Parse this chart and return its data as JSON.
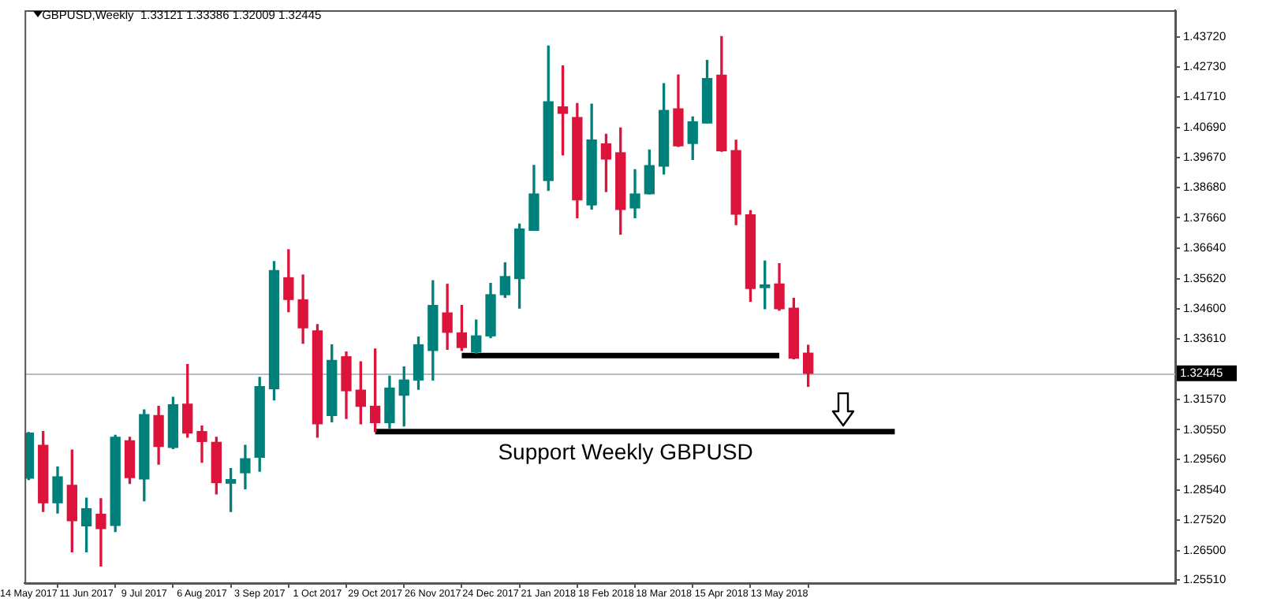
{
  "chart_data": {
    "type": "candlestick",
    "title": "GBPUSD,Weekly  1.33121 1.33386 1.32009 1.32445",
    "x": [
      "2017-05-14",
      "2017-05-21",
      "2017-05-28",
      "2017-06-04",
      "2017-06-11",
      "2017-06-18",
      "2017-06-25",
      "2017-07-02",
      "2017-07-09",
      "2017-07-16",
      "2017-07-23",
      "2017-07-30",
      "2017-08-06",
      "2017-08-13",
      "2017-08-20",
      "2017-08-27",
      "2017-09-03",
      "2017-09-10",
      "2017-09-17",
      "2017-09-24",
      "2017-10-01",
      "2017-10-08",
      "2017-10-15",
      "2017-10-22",
      "2017-10-29",
      "2017-11-05",
      "2017-11-12",
      "2017-11-19",
      "2017-11-26",
      "2017-12-03",
      "2017-12-10",
      "2017-12-17",
      "2017-12-24",
      "2017-12-31",
      "2018-01-07",
      "2018-01-14",
      "2018-01-21",
      "2018-01-28",
      "2018-02-04",
      "2018-02-11",
      "2018-02-18",
      "2018-02-25",
      "2018-03-04",
      "2018-03-11",
      "2018-03-18",
      "2018-03-25",
      "2018-04-01",
      "2018-04-08",
      "2018-04-15",
      "2018-04-22",
      "2018-04-29",
      "2018-05-06",
      "2018-05-13",
      "2018-05-20",
      "2018-05-27"
    ],
    "ohlc": [
      [
        1.2893,
        1.3046,
        1.2888,
        1.3044
      ],
      [
        1.3003,
        1.3049,
        1.2781,
        1.281
      ],
      [
        1.281,
        1.293,
        1.2776,
        1.2897
      ],
      [
        1.2869,
        1.2987,
        1.2646,
        1.275
      ],
      [
        1.2733,
        1.2826,
        1.2646,
        1.279
      ],
      [
        1.2772,
        1.2824,
        1.2598,
        1.2724
      ],
      [
        1.2734,
        1.3037,
        1.2714,
        1.303
      ],
      [
        1.3018,
        1.303,
        1.2875,
        1.2895
      ],
      [
        1.289,
        1.3122,
        1.2817,
        1.3106
      ],
      [
        1.3103,
        1.3134,
        1.294,
        1.2999
      ],
      [
        1.2996,
        1.3164,
        1.2992,
        1.3139
      ],
      [
        1.3141,
        1.3274,
        1.303,
        1.3044
      ],
      [
        1.3049,
        1.3068,
        1.2946,
        1.3016
      ],
      [
        1.3013,
        1.303,
        1.284,
        1.2878
      ],
      [
        1.2876,
        1.2925,
        1.2781,
        1.2888
      ],
      [
        1.2911,
        1.3003,
        1.2857,
        1.2958
      ],
      [
        1.2963,
        1.3231,
        1.2916,
        1.32
      ],
      [
        1.3193,
        1.3619,
        1.3155,
        1.3589
      ],
      [
        1.3565,
        1.3659,
        1.3451,
        1.3492
      ],
      [
        1.3491,
        1.3574,
        1.3345,
        1.3397
      ],
      [
        1.3387,
        1.3408,
        1.303,
        1.3075
      ],
      [
        1.3103,
        1.334,
        1.3082,
        1.3288
      ],
      [
        1.33,
        1.3316,
        1.3093,
        1.3186
      ],
      [
        1.3188,
        1.3283,
        1.3075,
        1.3134
      ],
      [
        1.3134,
        1.3326,
        1.3049,
        1.3079
      ],
      [
        1.3079,
        1.3235,
        1.3061,
        1.3195
      ],
      [
        1.3171,
        1.3266,
        1.3068,
        1.3222
      ],
      [
        1.3222,
        1.3366,
        1.3191,
        1.334
      ],
      [
        1.3321,
        1.3555,
        1.3222,
        1.3472
      ],
      [
        1.3447,
        1.3543,
        1.3325,
        1.3382
      ],
      [
        1.338,
        1.3472,
        1.3321,
        1.3331
      ],
      [
        1.3316,
        1.3423,
        1.3312,
        1.337
      ],
      [
        1.337,
        1.3546,
        1.3364,
        1.3508
      ],
      [
        1.3508,
        1.3615,
        1.3499,
        1.3569
      ],
      [
        1.3562,
        1.3745,
        1.3463,
        1.3728
      ],
      [
        1.3724,
        1.3942,
        1.3724,
        1.3846
      ],
      [
        1.3891,
        1.4342,
        1.3858,
        1.4155
      ],
      [
        1.4138,
        1.4275,
        1.3977,
        1.4116
      ],
      [
        1.4102,
        1.4149,
        1.3766,
        1.3826
      ],
      [
        1.3809,
        1.4147,
        1.3795,
        1.4027
      ],
      [
        1.4014,
        1.4046,
        1.3854,
        1.3963
      ],
      [
        1.3984,
        1.4067,
        1.3711,
        1.3794
      ],
      [
        1.3799,
        1.3927,
        1.3766,
        1.3846
      ],
      [
        1.3847,
        1.3993,
        1.3846,
        1.3941
      ],
      [
        1.3939,
        1.4216,
        1.3913,
        1.4126
      ],
      [
        1.4131,
        1.4245,
        1.4005,
        1.4007
      ],
      [
        1.4015,
        1.4104,
        1.3962,
        1.4088
      ],
      [
        1.4084,
        1.4294,
        1.4084,
        1.4233
      ],
      [
        1.4244,
        1.4374,
        1.3989,
        1.3991
      ],
      [
        1.3991,
        1.4026,
        1.3743,
        1.3778
      ],
      [
        1.3776,
        1.379,
        1.3486,
        1.3529
      ],
      [
        1.3532,
        1.3621,
        1.3461,
        1.3541
      ],
      [
        1.3544,
        1.3612,
        1.3456,
        1.3461
      ],
      [
        1.3463,
        1.3496,
        1.3293,
        1.3295
      ],
      [
        1.33121,
        1.33386,
        1.32009,
        1.32445
      ]
    ],
    "colors": [
      "#00807b",
      "#dc143c",
      "#00807b",
      "#dc143c",
      "#00807b",
      "#dc143c",
      "#00807b",
      "#dc143c",
      "#00807b",
      "#dc143c",
      "#00807b",
      "#dc143c",
      "#dc143c",
      "#dc143c",
      "#00807b",
      "#00807b",
      "#00807b",
      "#00807b",
      "#dc143c",
      "#dc143c",
      "#dc143c",
      "#00807b",
      "#dc143c",
      "#dc143c",
      "#dc143c",
      "#00807b",
      "#00807b",
      "#00807b",
      "#00807b",
      "#dc143c",
      "#dc143c",
      "#00807b",
      "#00807b",
      "#00807b",
      "#00807b",
      "#00807b",
      "#00807b",
      "#dc143c",
      "#dc143c",
      "#00807b",
      "#dc143c",
      "#dc143c",
      "#00807b",
      "#00807b",
      "#00807b",
      "#dc143c",
      "#00807b",
      "#00807b",
      "#dc143c",
      "#dc143c",
      "#dc143c",
      "#00807b",
      "#dc143c",
      "#dc143c",
      "#dc143c"
    ],
    "xlim": [
      "2017-05-12",
      "2018-11-21"
    ],
    "xticks": [
      {
        "value": "2017-05-14",
        "label": "14 May 2017"
      },
      {
        "value": "2017-06-11",
        "label": "11 Jun 2017"
      },
      {
        "value": "2017-07-09",
        "label": "9 Jul 2017"
      },
      {
        "value": "2017-08-06",
        "label": "6 Aug 2017"
      },
      {
        "value": "2017-09-03",
        "label": "3 Sep 2017"
      },
      {
        "value": "2017-10-01",
        "label": "1 Oct 2017"
      },
      {
        "value": "2017-10-29",
        "label": "29 Oct 2017"
      },
      {
        "value": "2017-11-26",
        "label": "26 Nov 2017"
      },
      {
        "value": "2017-12-24",
        "label": "24 Dec 2017"
      },
      {
        "value": "2018-01-21",
        "label": "21 Jan 2018"
      },
      {
        "value": "2018-02-18",
        "label": "18 Feb 2018"
      },
      {
        "value": "2018-03-18",
        "label": "18 Mar 2018"
      },
      {
        "value": "2018-04-15",
        "label": "15 Apr 2018"
      },
      {
        "value": "2018-05-13",
        "label": "13 May 2018"
      }
    ],
    "ylim": [
      1.2541,
      1.4462
    ],
    "yticks": [
      {
        "value": 1.4372,
        "label": "1.43720"
      },
      {
        "value": 1.4273,
        "label": "1.42730"
      },
      {
        "value": 1.4171,
        "label": "1.41710"
      },
      {
        "value": 1.4069,
        "label": "1.40690"
      },
      {
        "value": 1.3967,
        "label": "1.39670"
      },
      {
        "value": 1.3868,
        "label": "1.38680"
      },
      {
        "value": 1.3766,
        "label": "1.37660"
      },
      {
        "value": 1.3664,
        "label": "1.36640"
      },
      {
        "value": 1.3562,
        "label": "1.35620"
      },
      {
        "value": 1.346,
        "label": "1.34600"
      },
      {
        "value": 1.3361,
        "label": "1.33610"
      },
      {
        "value": 1.3157,
        "label": "1.31570"
      },
      {
        "value": 1.3055,
        "label": "1.30550"
      },
      {
        "value": 1.2956,
        "label": "1.29560"
      },
      {
        "value": 1.2854,
        "label": "1.28540"
      },
      {
        "value": 1.2752,
        "label": "1.27520"
      },
      {
        "value": 1.265,
        "label": "1.26500"
      },
      {
        "value": 1.2551,
        "label": "1.25510"
      }
    ],
    "ref_lines": [
      {
        "axis": "y",
        "value": 1.32445,
        "label": "1.32445",
        "color": "#b4bcc4"
      }
    ],
    "series": [
      {
        "type": "line",
        "x": [
          "2017-12-10",
          "2018-05-13"
        ],
        "values": [
          1.3304,
          1.3304
        ],
        "color": "#000000"
      },
      {
        "type": "line",
        "name": "Support Weekly GBPUSD",
        "x": [
          "2017-10-29",
          "2018-07-08"
        ],
        "values": [
          1.3049,
          1.3049
        ],
        "color": "#000000"
      }
    ]
  }
}
